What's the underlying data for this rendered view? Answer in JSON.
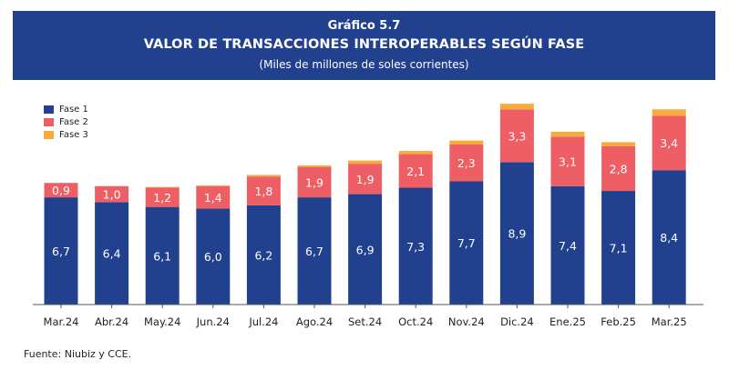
{
  "header": {
    "label": "Gráfico 5.7",
    "title": "VALOR DE TRANSACCIONES INTEROPERABLES SEGÚN FASE",
    "subtitle": "(Miles de millones de soles corrientes)"
  },
  "source": "Fuente: Niubiz y CCE.",
  "colors": {
    "banner": "#21418f",
    "fase1": "#21418f",
    "fase2": "#ed5f64",
    "fase3": "#f7ab3d"
  },
  "chart_data": {
    "type": "bar",
    "stacked": true,
    "categories": [
      "Mar.24",
      "Abr.24",
      "May.24",
      "Jun.24",
      "Jul.24",
      "Ago.24",
      "Set.24",
      "Oct.24",
      "Nov.24",
      "Dic.24",
      "Ene.25",
      "Feb.25",
      "Mar.25"
    ],
    "series": [
      {
        "name": "Fase 1",
        "color": "#21418f",
        "values": [
          6.7,
          6.4,
          6.1,
          6.0,
          6.2,
          6.7,
          6.9,
          7.3,
          7.7,
          8.9,
          7.4,
          7.1,
          8.4
        ],
        "labels": [
          "6,7",
          "6,4",
          "6,1",
          "6,0",
          "6,2",
          "6,7",
          "6,9",
          "7,3",
          "7,7",
          "8,9",
          "7,4",
          "7,1",
          "8,4"
        ]
      },
      {
        "name": "Fase 2",
        "color": "#ed5f64",
        "values": [
          0.9,
          1.0,
          1.2,
          1.4,
          1.8,
          1.9,
          1.9,
          2.1,
          2.3,
          3.3,
          3.1,
          2.8,
          3.4
        ],
        "labels": [
          "0,9",
          "1,0",
          "1,2",
          "1,4",
          "1,8",
          "1,9",
          "1,9",
          "2,1",
          "2,3",
          "3,3",
          "3,1",
          "2,8",
          "3,4"
        ]
      },
      {
        "name": "Fase 3",
        "color": "#f7ab3d",
        "values": [
          0.0,
          0.0,
          0.05,
          0.05,
          0.1,
          0.1,
          0.2,
          0.2,
          0.25,
          0.35,
          0.3,
          0.25,
          0.4
        ]
      }
    ],
    "ylim": [
      0,
      13
    ],
    "grid": false,
    "legend": "top-left"
  }
}
